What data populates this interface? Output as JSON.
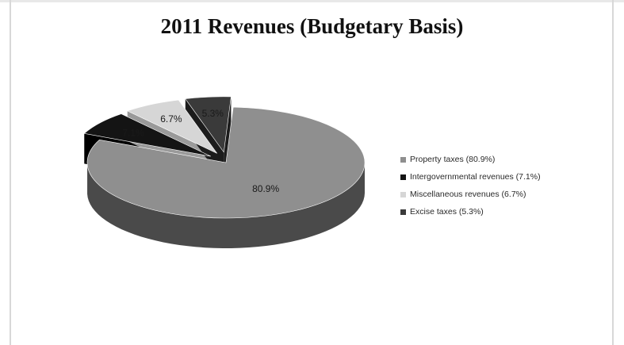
{
  "chart_data": {
    "type": "pie",
    "title": "2011 Revenues (Budgetary Basis)",
    "slices": [
      {
        "label": "Property taxes (80.9%)",
        "data_label": "80.9%",
        "value": 80.9,
        "color": "#8f8f8f",
        "side": "#4a4a4a",
        "exploded": false
      },
      {
        "label": "Intergovernmental revenues (7.1%)",
        "data_label": "7.1%",
        "value": 7.1,
        "color": "#141414",
        "side": "#000000",
        "exploded": true
      },
      {
        "label": "Miscellaneous revenues (6.7%)",
        "data_label": "6.7%",
        "value": 6.7,
        "color": "#d6d6d6",
        "side": "#9a9a9a",
        "exploded": true
      },
      {
        "label": "Excise taxes (5.3%)",
        "data_label": "5.3%",
        "value": 5.3,
        "color": "#3a3a3a",
        "side": "#1c1c1c",
        "exploded": true
      }
    ],
    "legend_position": "right",
    "style": "3d-exploded"
  }
}
